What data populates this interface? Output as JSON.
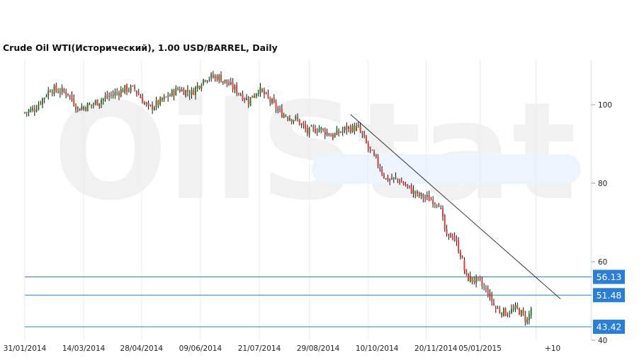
{
  "watermark": "OilStat",
  "chart_data": {
    "type": "candlestick",
    "title": "Crude Oil WTI(Исторический), 1.00 USD/BARREL, Daily",
    "ylim": [
      40,
      110
    ],
    "yticks": [
      100,
      80,
      60,
      40
    ],
    "xticks": [
      {
        "i": 0,
        "label": "31/01/2014"
      },
      {
        "i": 30,
        "label": "14/03/2014"
      },
      {
        "i": 59.5,
        "label": "28/04/2014"
      },
      {
        "i": 89.5,
        "label": "09/06/2014"
      },
      {
        "i": 119.5,
        "label": "21/07/2014"
      },
      {
        "i": 149.5,
        "label": "29/08/2014"
      },
      {
        "i": 179.5,
        "label": "10/10/2014"
      },
      {
        "i": 209.5,
        "label": "20/11/2014"
      },
      {
        "i": 232,
        "label": "05/01/2015"
      },
      {
        "i": 269,
        "label": "+10"
      }
    ],
    "gridlines_i": [
      30,
      59.5,
      89.5,
      119.5,
      145,
      175,
      204.5,
      232,
      260.5,
      288.5
    ],
    "close_path": [
      [
        0,
        98
      ],
      [
        5,
        99
      ],
      [
        13,
        104
      ],
      [
        22,
        103
      ],
      [
        27,
        99
      ],
      [
        34,
        100
      ],
      [
        42,
        102
      ],
      [
        51,
        104
      ],
      [
        56,
        104
      ],
      [
        63,
        99
      ],
      [
        70,
        101
      ],
      [
        78,
        104
      ],
      [
        85,
        103
      ],
      [
        92,
        107
      ],
      [
        99,
        107
      ],
      [
        107,
        104
      ],
      [
        114,
        101
      ],
      [
        119,
        104
      ],
      [
        125,
        101
      ],
      [
        130,
        98
      ],
      [
        139,
        96
      ],
      [
        144,
        93
      ],
      [
        150,
        94
      ],
      [
        157,
        92
      ],
      [
        164,
        94
      ],
      [
        170,
        94
      ],
      [
        175,
        89
      ],
      [
        181,
        84
      ],
      [
        184,
        81
      ],
      [
        190,
        81
      ],
      [
        195,
        79
      ],
      [
        200,
        77
      ],
      [
        206,
        76
      ],
      [
        211,
        75
      ],
      [
        215,
        66
      ],
      [
        218,
        67
      ],
      [
        222,
        62
      ],
      [
        225,
        56
      ],
      [
        231,
        55
      ],
      [
        236,
        52
      ],
      [
        240,
        48
      ],
      [
        245,
        47
      ],
      [
        251,
        48
      ],
      [
        256,
        45
      ],
      [
        258,
        48
      ]
    ],
    "up_color": "#2e7d1e",
    "down_color": "#e53935",
    "trendline": [
      [
        166,
        97.5
      ],
      [
        273,
        50.5
      ]
    ],
    "levels": [
      {
        "value": 56.13,
        "label": "56.13"
      },
      {
        "value": 51.48,
        "label": "51.48"
      },
      {
        "value": 43.42,
        "label": "43.42"
      }
    ],
    "level_color": "#2a7fd4"
  }
}
